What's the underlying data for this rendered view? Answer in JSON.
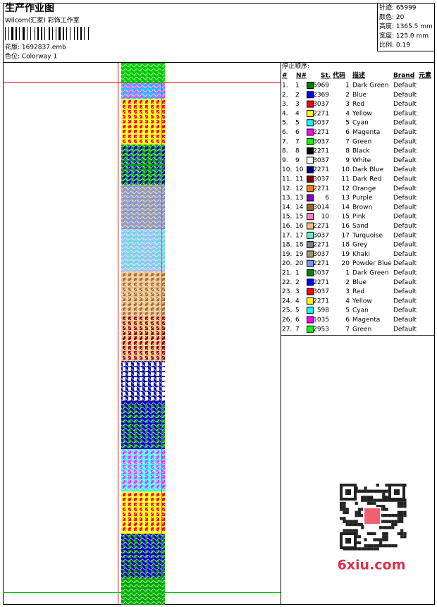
{
  "header": {
    "title": "生产作业图",
    "studio": "Wilcom(汇家) 彩饰工作室",
    "design": "花版: 1692837.emb",
    "colorway": "色位: Colorway 1",
    "info": [
      "针迹: 65999",
      "颜色: 20",
      "高度: 1365.5 mm",
      "宽度: 125.0 mm",
      "比例: 0.19"
    ]
  },
  "table": {
    "caption": "停止顺序:",
    "columns": [
      "#",
      "N#",
      "St.",
      "代码",
      "描述",
      "Brand",
      "元素"
    ],
    "rows": [
      [
        "1.",
        "1",
        "#008000",
        "5969",
        "1",
        "Dark Green",
        "Default"
      ],
      [
        "2.",
        "2",
        "#0000ff",
        "2369",
        "2",
        "Blue",
        "Default"
      ],
      [
        "3.",
        "3",
        "#ff0000",
        "3037",
        "3",
        "Red",
        "Default"
      ],
      [
        "4.",
        "4",
        "#ffff00",
        "2271",
        "4",
        "Yellow",
        "Default"
      ],
      [
        "5.",
        "5",
        "#00ffff",
        "3037",
        "5",
        "Cyan",
        "Default"
      ],
      [
        "6.",
        "6",
        "#ff00ff",
        "2271",
        "6",
        "Magenta",
        "Default"
      ],
      [
        "7.",
        "7",
        "#00ff00",
        "3037",
        "7",
        "Green",
        "Default"
      ],
      [
        "8.",
        "8",
        "#000000",
        "2271",
        "8",
        "Black",
        "Default"
      ],
      [
        "9.",
        "9",
        "#ffffff",
        "3037",
        "9",
        "White",
        "Default"
      ],
      [
        "10.",
        "10",
        "#000080",
        "2271",
        "10",
        "Dark Blue",
        "Default"
      ],
      [
        "11.",
        "11",
        "#800000",
        "3037",
        "11",
        "Dark Red",
        "Default"
      ],
      [
        "12.",
        "12",
        "#ff8000",
        "2271",
        "12",
        "Orange",
        "Default"
      ],
      [
        "13.",
        "13",
        "#8000c0",
        "6",
        "13",
        "Purple",
        "Default"
      ],
      [
        "14.",
        "14",
        "#996633",
        "3014",
        "14",
        "Brown",
        "Default"
      ],
      [
        "15.",
        "15",
        "#ff80c0",
        "10",
        "15",
        "Pink",
        "Default"
      ],
      [
        "16.",
        "16",
        "#f0c080",
        "2271",
        "16",
        "Sand",
        "Default"
      ],
      [
        "17.",
        "17",
        "#66eecc",
        "3037",
        "17",
        "Turquoise",
        "Default"
      ],
      [
        "18.",
        "18",
        "#808080",
        "2271",
        "18",
        "Grey",
        "Default"
      ],
      [
        "19.",
        "19",
        "#a09870",
        "3037",
        "19",
        "Khaki",
        "Default"
      ],
      [
        "20.",
        "20",
        "#8090f0",
        "2271",
        "20",
        "Powder Blue",
        "Default"
      ],
      [
        "21.",
        "1",
        "#008000",
        "3037",
        "1",
        "Dark Green",
        "Default"
      ],
      [
        "22.",
        "2",
        "#0000ff",
        "2271",
        "2",
        "Blue",
        "Default"
      ],
      [
        "23.",
        "3",
        "#ff0000",
        "3037",
        "3",
        "Red",
        "Default"
      ],
      [
        "24.",
        "4",
        "#ffff00",
        "2271",
        "4",
        "Yellow",
        "Default"
      ],
      [
        "25.",
        "5",
        "#00ffff",
        "598",
        "5",
        "Cyan",
        "Default"
      ],
      [
        "26.",
        "6",
        "#ff00ff",
        "1035",
        "6",
        "Magenta",
        "Default"
      ],
      [
        "27.",
        "7",
        "#00ff00",
        "2953",
        "7",
        "Green",
        "Default"
      ]
    ]
  },
  "watermark": "6xiu.com"
}
